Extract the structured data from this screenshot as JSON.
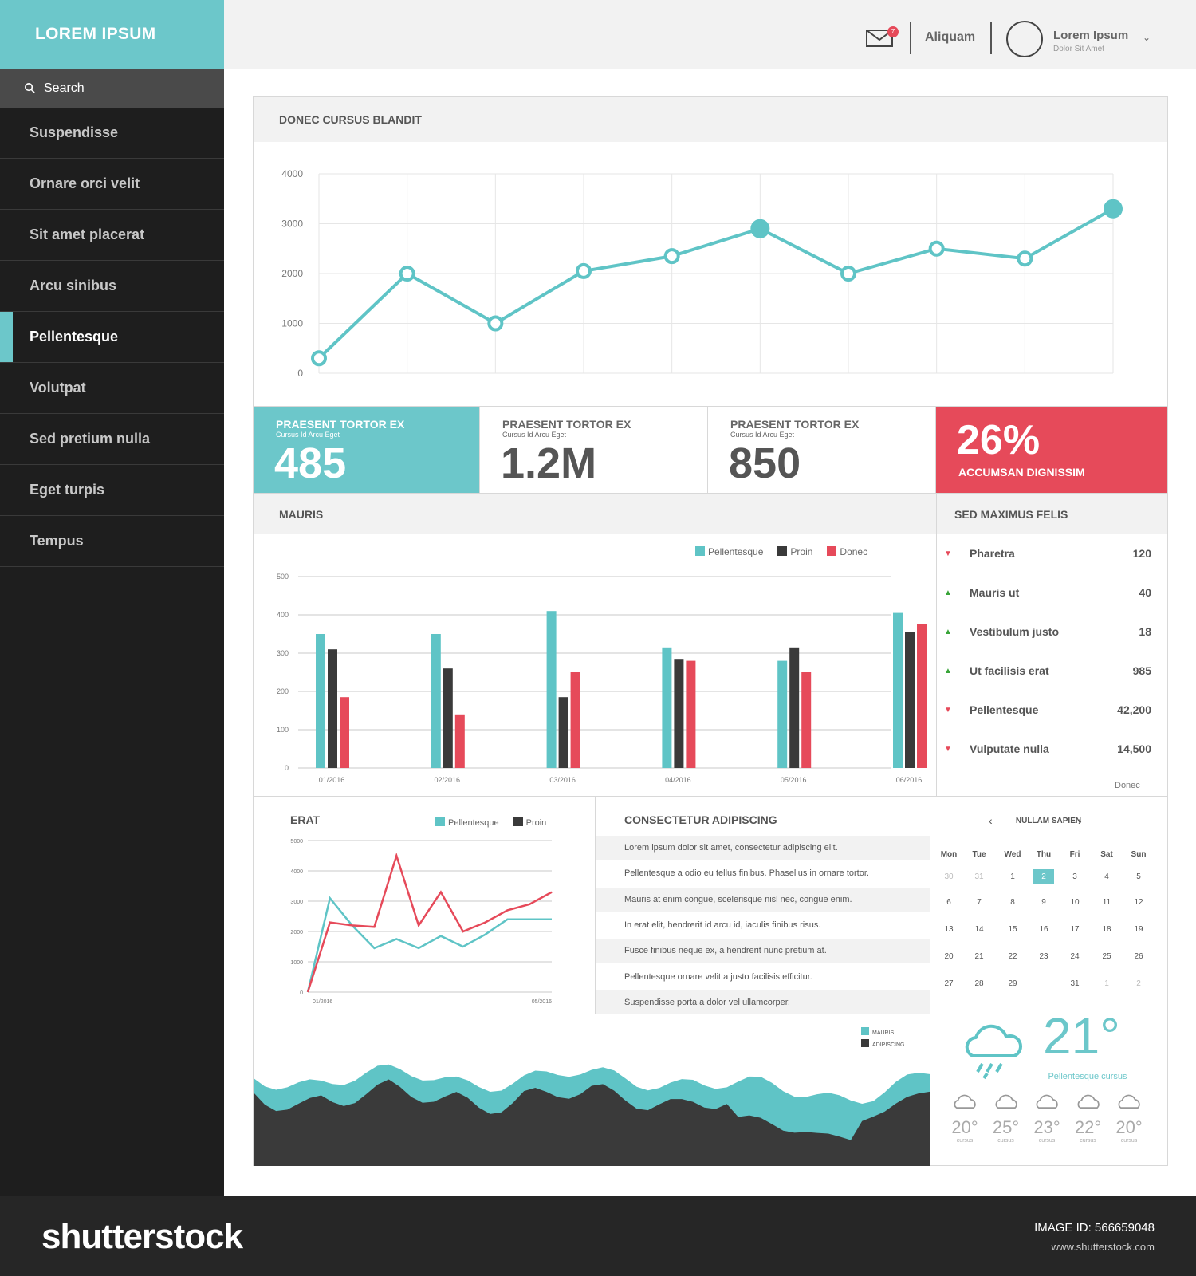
{
  "brand": "LOREM IPSUM",
  "search": {
    "placeholder": "Search"
  },
  "nav": [
    "Suspendisse",
    "Ornare orci velit",
    "Sit amet placerat",
    "Arcu sinibus",
    "Pellentesque",
    "Volutpat",
    "Sed pretium nulla",
    "Eget turpis",
    "Tempus"
  ],
  "nav_active_index": 4,
  "topbar": {
    "mail_badge": "7",
    "link": "Aliquam",
    "user_name": "Lorem Ipsum",
    "user_sub": "Dolor Sit Amet"
  },
  "main_chart": {
    "title": "DONEC CURSUS BLANDIT",
    "chart_data": {
      "type": "line",
      "ylim": [
        0,
        4000
      ],
      "yticks": [
        "4000",
        "3000",
        "2000",
        "1000",
        "0"
      ],
      "values": [
        300,
        2000,
        1000,
        2050,
        2350,
        2900,
        2000,
        2500,
        2300,
        3300
      ],
      "highlighted_points": [
        5,
        9
      ],
      "color": "#5fc4c6"
    }
  },
  "tiles": [
    {
      "label": "PRAESENT TORTOR EX",
      "sub": "Cursus Id Arcu Eget",
      "value": "485"
    },
    {
      "label": "PRAESENT TORTOR EX",
      "sub": "Cursus Id Arcu Eget",
      "value": "1.2M"
    },
    {
      "label": "PRAESENT TORTOR EX",
      "sub": "Cursus Id Arcu Eget",
      "value": "850"
    },
    {
      "value": "26%",
      "label": "ACCUMSAN DIGNISSIM"
    }
  ],
  "mauris": {
    "title": "MAURIS",
    "legend": [
      "Pellentesque",
      "Proin",
      "Donec"
    ],
    "colors": [
      "#5fc4c6",
      "#3a3a3a",
      "#e64a5a"
    ],
    "chart_data": {
      "type": "bar",
      "categories": [
        "01/2016",
        "02/2016",
        "03/2016",
        "04/2016",
        "05/2016",
        "06/2016"
      ],
      "series": [
        {
          "name": "Pellentesque",
          "values": [
            350,
            350,
            410,
            315,
            280,
            405
          ]
        },
        {
          "name": "Proin",
          "values": [
            310,
            260,
            185,
            285,
            315,
            355
          ]
        },
        {
          "name": "Donec",
          "values": [
            185,
            140,
            250,
            280,
            250,
            375
          ]
        }
      ],
      "ylim": [
        0,
        500
      ],
      "yticks": [
        "500",
        "400",
        "300",
        "200",
        "100",
        "0"
      ]
    }
  },
  "sed_list": {
    "title": "SED MAXIMUS FELIS",
    "items": [
      {
        "label": "Pharetra",
        "value": "120",
        "trend": "down"
      },
      {
        "label": "Mauris ut",
        "value": "40",
        "trend": "up"
      },
      {
        "label": "Vestibulum justo",
        "value": "18",
        "trend": "up"
      },
      {
        "label": "Ut facilisis erat",
        "value": "985",
        "trend": "up"
      },
      {
        "label": "Pellentesque",
        "value": "42,200",
        "trend": "down"
      },
      {
        "label": "Vulputate nulla",
        "value": "14,500",
        "trend": "down"
      }
    ],
    "footer": "Donec"
  },
  "erat": {
    "title": "ERAT",
    "legend": [
      "Pellentesque",
      "Proin"
    ],
    "chart_data": {
      "type": "line",
      "ylim": [
        0,
        5000
      ],
      "yticks": [
        "5000",
        "4000",
        "3000",
        "2000",
        "1000",
        "0"
      ],
      "x_first": "01/2016",
      "x_last": "05/2016",
      "series": [
        {
          "name": "Pellentesque",
          "color": "#5fc4c6",
          "values": [
            0,
            3100,
            2200,
            1450,
            1750,
            1450,
            1850,
            1500,
            1900,
            2400,
            2400,
            2400
          ]
        },
        {
          "name": "Proin",
          "color": "#e64a5a",
          "values": [
            0,
            2300,
            2200,
            2150,
            4500,
            2200,
            3300,
            2000,
            2300,
            2700,
            2900,
            3300
          ]
        }
      ]
    }
  },
  "consectetur": {
    "title": "CONSECTETUR ADIPISCING",
    "rows": [
      "Lorem ipsum dolor sit amet, consectetur adipiscing elit.",
      "Pellentesque a odio eu tellus finibus. Phasellus in ornare tortor.",
      "Mauris at enim congue, scelerisque nisl nec, congue enim.",
      "In erat elit, hendrerit id arcu id, iaculis finibus risus.",
      "Fusce finibus neque ex, a hendrerit nunc pretium at.",
      "Pellentesque ornare velit a justo facilisis efficitur.",
      "Suspendisse porta a dolor vel ullamcorper."
    ]
  },
  "calendar": {
    "title": "NULLAM SAPIEN",
    "days": [
      "Mon",
      "Tue",
      "Wed",
      "Thu",
      "Fri",
      "Sat",
      "Sun"
    ],
    "weeks": [
      [
        "30",
        "31",
        "1",
        "2",
        "3",
        "4",
        "5"
      ],
      [
        "6",
        "7",
        "8",
        "9",
        "10",
        "11",
        "12"
      ],
      [
        "13",
        "14",
        "15",
        "16",
        "17",
        "18",
        "19"
      ],
      [
        "20",
        "21",
        "22",
        "23",
        "24",
        "25",
        "26"
      ],
      [
        "27",
        "28",
        "29",
        "",
        "31",
        "1",
        "2"
      ]
    ],
    "selected": "2"
  },
  "area": {
    "legend": [
      "MAURIS",
      "ADIPISCING"
    ],
    "colors": [
      "#5fc4c6",
      "#3a3a3a"
    ]
  },
  "weather": {
    "temp": "21°",
    "label": "Pellentesque cursus",
    "forecast": [
      {
        "temp": "20°",
        "label": "cursus"
      },
      {
        "temp": "25°",
        "label": "cursus"
      },
      {
        "temp": "23°",
        "label": "cursus"
      },
      {
        "temp": "22°",
        "label": "cursus"
      },
      {
        "temp": "20°",
        "label": "cursus"
      }
    ]
  },
  "footer": {
    "logo": "shutterstock",
    "image_id": "IMAGE ID: 566659048",
    "url": "www.shutterstock.com"
  }
}
